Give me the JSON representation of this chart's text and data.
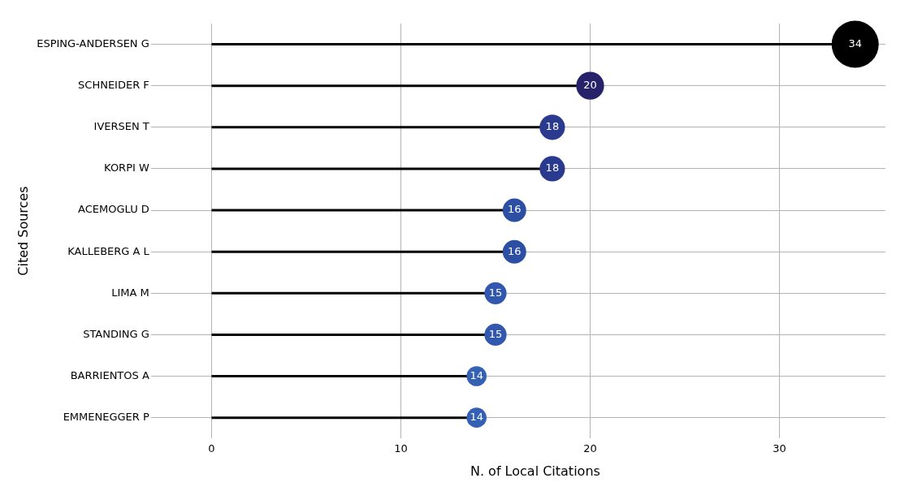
{
  "chart_data": {
    "type": "lollipop",
    "orientation": "horizontal",
    "xlabel": "N. of Local Citations",
    "ylabel": "Cited Sources",
    "categories": [
      "ESPING-ANDERSEN G",
      "SCHNEIDER F",
      "IVERSEN T",
      "KORPI W",
      "ACEMOGLU D",
      "KALLEBERG A L",
      "LIMA M",
      "STANDING G",
      "BARRIENTOS A",
      "EMMENEGGER P"
    ],
    "values": [
      34,
      20,
      18,
      18,
      16,
      16,
      15,
      15,
      14,
      14
    ],
    "sizes": [
      1,
      0.35,
      0.29,
      0.29,
      0.25,
      0.25,
      0.22,
      0.22,
      0.18,
      0.18
    ],
    "colors": [
      "#000000",
      "#27236b",
      "#2a3a8f",
      "#2a3a8f",
      "#2d4fa3",
      "#2d4fa3",
      "#3158ae",
      "#3158ae",
      "#3561b4",
      "#3561b4"
    ],
    "xlim": [
      -1.4,
      35.6
    ],
    "xticks": [
      0,
      10,
      20,
      30
    ],
    "grid": true,
    "legend": false,
    "data_labels": true,
    "marker": "circle"
  }
}
